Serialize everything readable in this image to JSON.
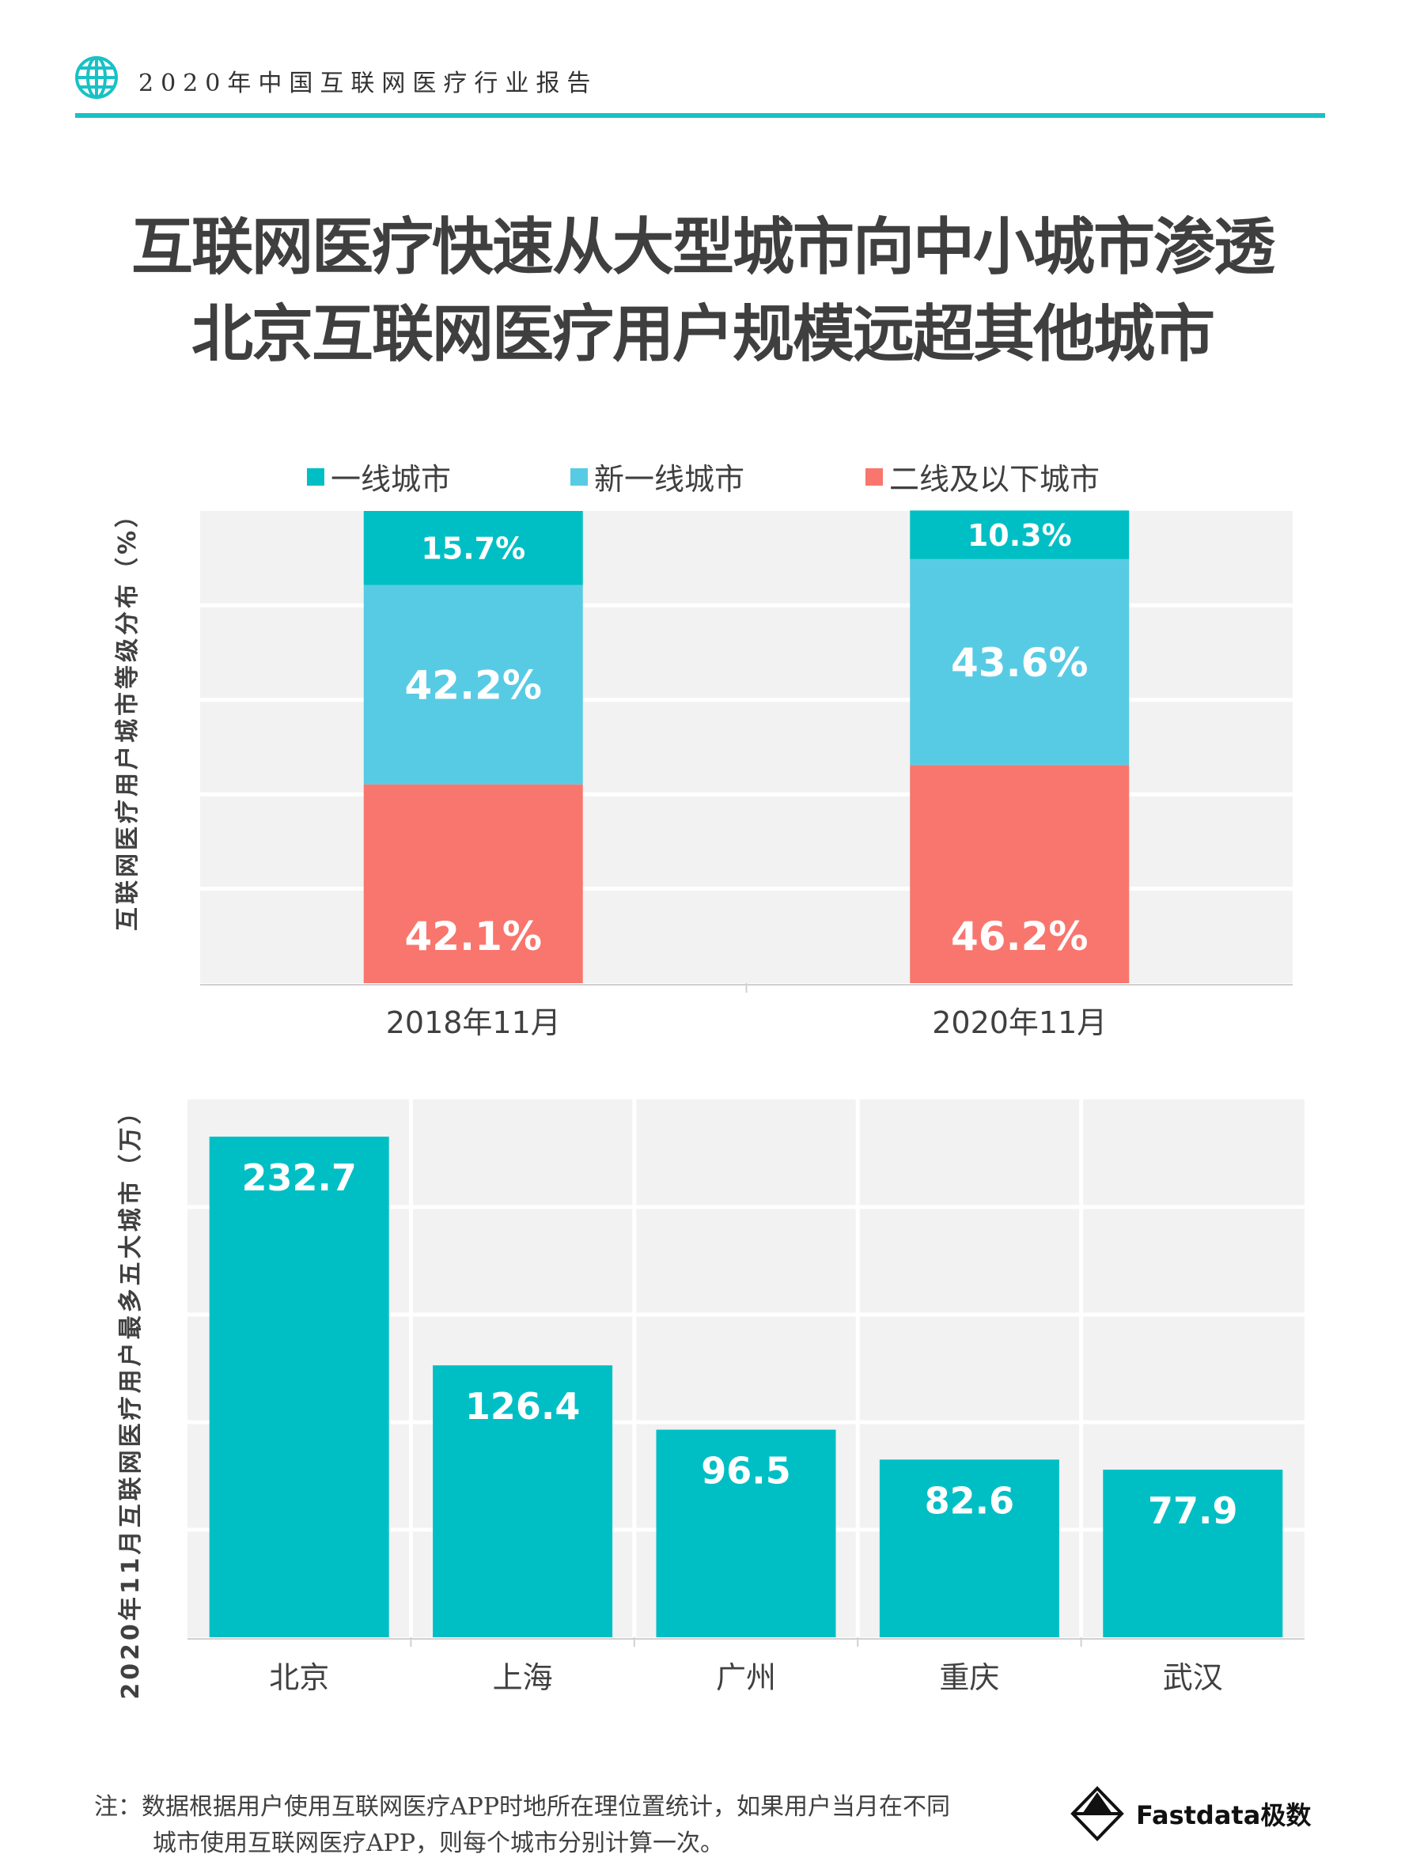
{
  "header": {
    "title": "2020年中国互联网医疗行业报告",
    "icon": "globe-icon",
    "accent_color": "#19c1c5"
  },
  "headline": {
    "line1": "互联网医疗快速从大型城市向中小城市渗透",
    "line2": "北京互联网医疗用户规模远超其他城市"
  },
  "colors": {
    "tier1": "#00bfc4",
    "new_tier1": "#58cbe4",
    "tier2_below": "#f8766d",
    "plot_bg": "#f2f2f2"
  },
  "chart_data": [
    {
      "type": "bar",
      "stacked": true,
      "ylabel": "互联网医疗用户城市等级分布（%）",
      "categories": [
        "2018年11月",
        "2020年11月"
      ],
      "series": [
        {
          "name": "二线及以下城市",
          "values": [
            42.1,
            46.2
          ],
          "labels": [
            "42.1%",
            "46.2%"
          ],
          "color": "#f8766d"
        },
        {
          "name": "新一线城市",
          "values": [
            42.2,
            43.6
          ],
          "labels": [
            "42.2%",
            "43.6%"
          ],
          "color": "#58cbe4"
        },
        {
          "name": "一线城市",
          "values": [
            15.7,
            10.3
          ],
          "labels": [
            "15.7%",
            "10.3%"
          ],
          "color": "#00bfc4"
        }
      ],
      "legend_order": [
        "一线城市",
        "新一线城市",
        "二线及以下城市"
      ],
      "legend": "top",
      "ylim": [
        0,
        100
      ],
      "grid": true
    },
    {
      "type": "bar",
      "ylabel": "2020年11月互联网医疗用户最多五大城市（万）",
      "categories": [
        "北京",
        "上海",
        "广州",
        "重庆",
        "武汉"
      ],
      "values": [
        232.7,
        126.4,
        96.5,
        82.6,
        77.9
      ],
      "labels": [
        "232.7",
        "126.4",
        "96.5",
        "82.6",
        "77.9"
      ],
      "color": "#00bfc4",
      "ylim": [
        0,
        250
      ],
      "grid": true
    }
  ],
  "footer": {
    "note_line1": "注：数据根据用户使用互联网医疗APP时地所在理位置统计，如果用户当月在不同",
    "note_line2": "城市使用互联网医疗APP，则每个城市分别计算一次。",
    "logo_text": "Fastdata极数"
  }
}
